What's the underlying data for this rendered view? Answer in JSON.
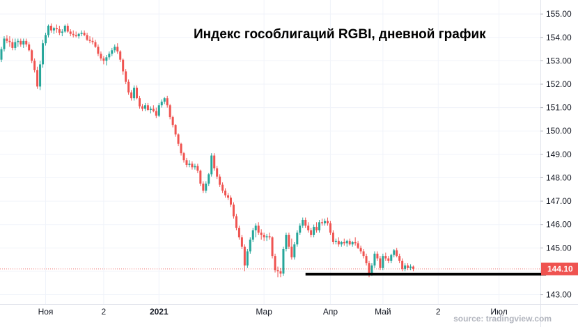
{
  "chart_data": {
    "type": "candlestick",
    "title": "Индекс гособлигаций RGBI, дневной график",
    "source": "source: tradingview.com",
    "ylim": [
      142.6,
      155.6
    ],
    "y_ticks": [
      {
        "value": 143,
        "label": "143.00"
      },
      {
        "value": 144,
        "label": "144.00"
      },
      {
        "value": 145,
        "label": "145.00"
      },
      {
        "value": 146,
        "label": "146.00"
      },
      {
        "value": 147,
        "label": "147.00"
      },
      {
        "value": 148,
        "label": "148.00"
      },
      {
        "value": 149,
        "label": "149.00"
      },
      {
        "value": 150,
        "label": "150.00"
      },
      {
        "value": 151,
        "label": "151.00"
      },
      {
        "value": 152,
        "label": "152.00"
      },
      {
        "value": 153,
        "label": "153.00"
      },
      {
        "value": 154,
        "label": "154.00"
      },
      {
        "value": 155,
        "label": "155.00"
      }
    ],
    "x_ticks": [
      {
        "index": 16,
        "label": "Ноя"
      },
      {
        "index": 37,
        "label": "2"
      },
      {
        "index": 57,
        "label": "2021"
      },
      {
        "index": 95,
        "label": "Мар"
      },
      {
        "index": 119,
        "label": "Апр"
      },
      {
        "index": 138,
        "label": "Май"
      },
      {
        "index": 158,
        "label": "2"
      },
      {
        "index": 180,
        "label": "Июл"
      }
    ],
    "last_price": {
      "value": 144.1,
      "label": "144.10"
    },
    "support_level": {
      "value": 143.88,
      "from_index": 110,
      "to_index": 197
    },
    "colors": {
      "up": "#26a69a",
      "down": "#ef5350",
      "last_price": "#ef5350",
      "support": "#000000",
      "grid": "#f0f3fa"
    },
    "candles": [
      [
        153.05,
        153.6,
        152.95,
        153.5
      ],
      [
        153.5,
        154.05,
        153.4,
        153.95
      ],
      [
        153.95,
        154.1,
        153.75,
        153.85
      ],
      [
        153.85,
        154.05,
        153.6,
        153.8
      ],
      [
        153.8,
        153.95,
        153.45,
        153.55
      ],
      [
        153.55,
        153.95,
        153.45,
        153.8
      ],
      [
        153.8,
        153.95,
        153.6,
        153.85
      ],
      [
        153.85,
        153.95,
        153.6,
        153.7
      ],
      [
        153.7,
        153.95,
        153.55,
        153.85
      ],
      [
        153.85,
        153.95,
        153.6,
        153.7
      ],
      [
        153.7,
        153.8,
        153.4,
        153.45
      ],
      [
        153.45,
        153.5,
        152.9,
        153.0
      ],
      [
        153.0,
        153.1,
        152.5,
        152.6
      ],
      [
        152.6,
        152.75,
        151.8,
        151.9
      ],
      [
        151.9,
        153.0,
        151.75,
        152.85
      ],
      [
        152.85,
        153.9,
        152.7,
        153.75
      ],
      [
        153.75,
        154.2,
        153.65,
        154.1
      ],
      [
        154.1,
        154.55,
        154.0,
        154.5
      ],
      [
        154.5,
        154.6,
        154.2,
        154.3
      ],
      [
        154.3,
        154.45,
        154.15,
        154.4
      ],
      [
        154.4,
        154.55,
        154.2,
        154.35
      ],
      [
        154.35,
        154.5,
        154.1,
        154.2
      ],
      [
        154.2,
        154.35,
        154.05,
        154.25
      ],
      [
        154.25,
        154.55,
        154.2,
        154.5
      ],
      [
        154.5,
        154.6,
        154.2,
        154.25
      ],
      [
        154.25,
        154.35,
        154.05,
        154.15
      ],
      [
        154.15,
        154.3,
        154.0,
        154.1
      ],
      [
        154.1,
        154.25,
        154.0,
        154.05
      ],
      [
        154.05,
        154.2,
        153.95,
        154.15
      ],
      [
        154.15,
        154.3,
        154.05,
        154.2
      ],
      [
        154.2,
        154.3,
        154.05,
        154.1
      ],
      [
        154.1,
        154.2,
        153.85,
        153.9
      ],
      [
        153.9,
        154.05,
        153.75,
        153.85
      ],
      [
        153.85,
        154.0,
        153.7,
        153.8
      ],
      [
        153.8,
        153.9,
        153.55,
        153.6
      ],
      [
        153.6,
        153.7,
        153.2,
        153.3
      ],
      [
        153.3,
        153.4,
        153.0,
        153.1
      ],
      [
        153.1,
        153.2,
        152.85,
        153.0
      ],
      [
        153.0,
        153.25,
        152.8,
        153.15
      ],
      [
        153.15,
        153.4,
        153.05,
        153.3
      ],
      [
        153.3,
        153.55,
        153.2,
        153.45
      ],
      [
        153.45,
        153.7,
        153.35,
        153.6
      ],
      [
        153.6,
        153.75,
        153.3,
        153.4
      ],
      [
        153.4,
        153.45,
        152.95,
        153.05
      ],
      [
        153.05,
        153.1,
        152.4,
        152.55
      ],
      [
        152.55,
        152.65,
        152.0,
        152.1
      ],
      [
        152.1,
        152.2,
        151.55,
        151.65
      ],
      [
        151.65,
        151.75,
        151.3,
        151.4
      ],
      [
        151.4,
        151.95,
        151.3,
        151.85
      ],
      [
        151.85,
        151.95,
        151.35,
        151.4
      ],
      [
        151.4,
        151.5,
        150.95,
        151.05
      ],
      [
        151.05,
        151.15,
        150.85,
        150.95
      ],
      [
        150.95,
        151.2,
        150.85,
        151.1
      ],
      [
        151.1,
        151.2,
        150.85,
        150.9
      ],
      [
        150.9,
        151.05,
        150.75,
        150.95
      ],
      [
        150.95,
        151.1,
        150.8,
        150.85
      ],
      [
        150.85,
        151.0,
        150.55,
        150.65
      ],
      [
        150.65,
        151.2,
        150.6,
        151.1
      ],
      [
        151.1,
        151.35,
        151.0,
        151.25
      ],
      [
        151.25,
        151.45,
        151.15,
        151.4
      ],
      [
        151.4,
        151.5,
        151.0,
        151.1
      ],
      [
        151.1,
        151.15,
        150.5,
        150.6
      ],
      [
        150.6,
        150.65,
        150.15,
        150.25
      ],
      [
        150.25,
        150.3,
        149.75,
        149.85
      ],
      [
        149.85,
        149.9,
        149.35,
        149.45
      ],
      [
        149.45,
        149.5,
        148.95,
        149.05
      ],
      [
        149.05,
        149.1,
        148.65,
        148.75
      ],
      [
        148.75,
        148.85,
        148.45,
        148.55
      ],
      [
        148.55,
        148.75,
        148.45,
        148.6
      ],
      [
        148.6,
        148.7,
        148.35,
        148.45
      ],
      [
        148.45,
        148.6,
        148.35,
        148.5
      ],
      [
        148.5,
        148.6,
        148.2,
        148.3
      ],
      [
        148.3,
        148.35,
        147.65,
        147.75
      ],
      [
        147.75,
        147.85,
        147.35,
        147.45
      ],
      [
        147.45,
        147.85,
        147.35,
        147.75
      ],
      [
        147.75,
        148.2,
        147.65,
        148.15
      ],
      [
        148.15,
        149.05,
        148.05,
        148.95
      ],
      [
        148.95,
        149.05,
        148.3,
        148.4
      ],
      [
        148.4,
        148.5,
        147.95,
        148.05
      ],
      [
        148.05,
        148.15,
        147.6,
        147.7
      ],
      [
        147.7,
        147.8,
        147.35,
        147.45
      ],
      [
        147.45,
        147.55,
        147.15,
        147.25
      ],
      [
        147.25,
        147.35,
        147.05,
        147.15
      ],
      [
        147.15,
        147.25,
        146.75,
        146.85
      ],
      [
        146.85,
        146.95,
        146.25,
        146.35
      ],
      [
        146.35,
        146.45,
        145.75,
        145.85
      ],
      [
        145.85,
        145.95,
        145.35,
        145.45
      ],
      [
        145.45,
        145.55,
        144.95,
        145.05
      ],
      [
        145.05,
        145.15,
        144.0,
        144.25
      ],
      [
        144.25,
        144.95,
        144.15,
        144.85
      ],
      [
        144.85,
        145.45,
        144.75,
        145.35
      ],
      [
        145.35,
        145.85,
        145.25,
        145.75
      ],
      [
        145.75,
        146.05,
        145.45,
        145.95
      ],
      [
        145.95,
        146.1,
        145.55,
        145.65
      ],
      [
        145.65,
        145.8,
        145.35,
        145.55
      ],
      [
        145.55,
        145.65,
        145.3,
        145.45
      ],
      [
        145.45,
        145.6,
        145.3,
        145.5
      ],
      [
        145.5,
        145.65,
        145.35,
        145.45
      ],
      [
        145.45,
        145.5,
        144.55,
        144.65
      ],
      [
        144.65,
        144.75,
        143.95,
        144.05
      ],
      [
        144.05,
        144.2,
        143.75,
        144.0
      ],
      [
        144.0,
        144.15,
        143.75,
        143.9
      ],
      [
        143.9,
        145.05,
        143.8,
        144.95
      ],
      [
        144.95,
        145.65,
        144.85,
        145.55
      ],
      [
        145.55,
        145.65,
        144.95,
        145.05
      ],
      [
        145.05,
        145.4,
        144.5,
        144.6
      ],
      [
        144.6,
        145.25,
        144.5,
        145.15
      ],
      [
        145.15,
        145.75,
        145.05,
        145.65
      ],
      [
        145.65,
        146.05,
        145.55,
        145.95
      ],
      [
        145.95,
        146.3,
        145.85,
        146.2
      ],
      [
        146.2,
        146.3,
        145.85,
        145.95
      ],
      [
        145.95,
        146.1,
        145.65,
        145.75
      ],
      [
        145.75,
        145.85,
        145.45,
        145.55
      ],
      [
        145.55,
        146.0,
        145.45,
        145.9
      ],
      [
        145.9,
        146.1,
        145.65,
        145.75
      ],
      [
        145.75,
        146.2,
        145.65,
        146.1
      ],
      [
        146.1,
        146.25,
        145.95,
        146.05
      ],
      [
        146.05,
        146.25,
        145.95,
        146.15
      ],
      [
        146.15,
        146.3,
        145.95,
        146.05
      ],
      [
        146.05,
        146.15,
        145.55,
        145.65
      ],
      [
        145.65,
        145.75,
        145.15,
        145.25
      ],
      [
        145.25,
        145.4,
        145.15,
        145.3
      ],
      [
        145.3,
        145.45,
        145.05,
        145.15
      ],
      [
        145.15,
        145.3,
        145.05,
        145.25
      ],
      [
        145.25,
        145.4,
        145.1,
        145.2
      ],
      [
        145.2,
        145.35,
        145.05,
        145.3
      ],
      [
        145.3,
        145.4,
        145.1,
        145.15
      ],
      [
        145.15,
        145.3,
        145.05,
        145.25
      ],
      [
        145.25,
        145.45,
        145.1,
        145.2
      ],
      [
        145.2,
        145.3,
        144.95,
        145.0
      ],
      [
        145.0,
        145.1,
        144.75,
        144.85
      ],
      [
        144.85,
        144.95,
        144.55,
        144.65
      ],
      [
        144.65,
        144.75,
        144.25,
        144.35
      ],
      [
        144.35,
        144.45,
        143.75,
        143.9
      ],
      [
        143.9,
        144.35,
        143.8,
        144.25
      ],
      [
        144.25,
        144.85,
        144.15,
        144.75
      ],
      [
        144.75,
        144.85,
        144.45,
        144.55
      ],
      [
        144.55,
        144.65,
        144.05,
        144.15
      ],
      [
        144.15,
        144.75,
        144.05,
        144.65
      ],
      [
        144.65,
        144.8,
        144.45,
        144.55
      ],
      [
        144.55,
        144.65,
        144.35,
        144.45
      ],
      [
        144.45,
        144.75,
        144.35,
        144.7
      ],
      [
        144.7,
        144.95,
        144.6,
        144.9
      ],
      [
        144.9,
        145.0,
        144.6,
        144.65
      ],
      [
        144.65,
        144.75,
        144.35,
        144.45
      ],
      [
        144.45,
        144.55,
        144.0,
        144.1
      ],
      [
        144.1,
        144.35,
        144.0,
        144.25
      ],
      [
        144.25,
        144.35,
        144.05,
        144.15
      ],
      [
        144.15,
        144.3,
        144.05,
        144.2
      ],
      [
        144.2,
        144.25,
        144.0,
        144.1
      ]
    ]
  }
}
